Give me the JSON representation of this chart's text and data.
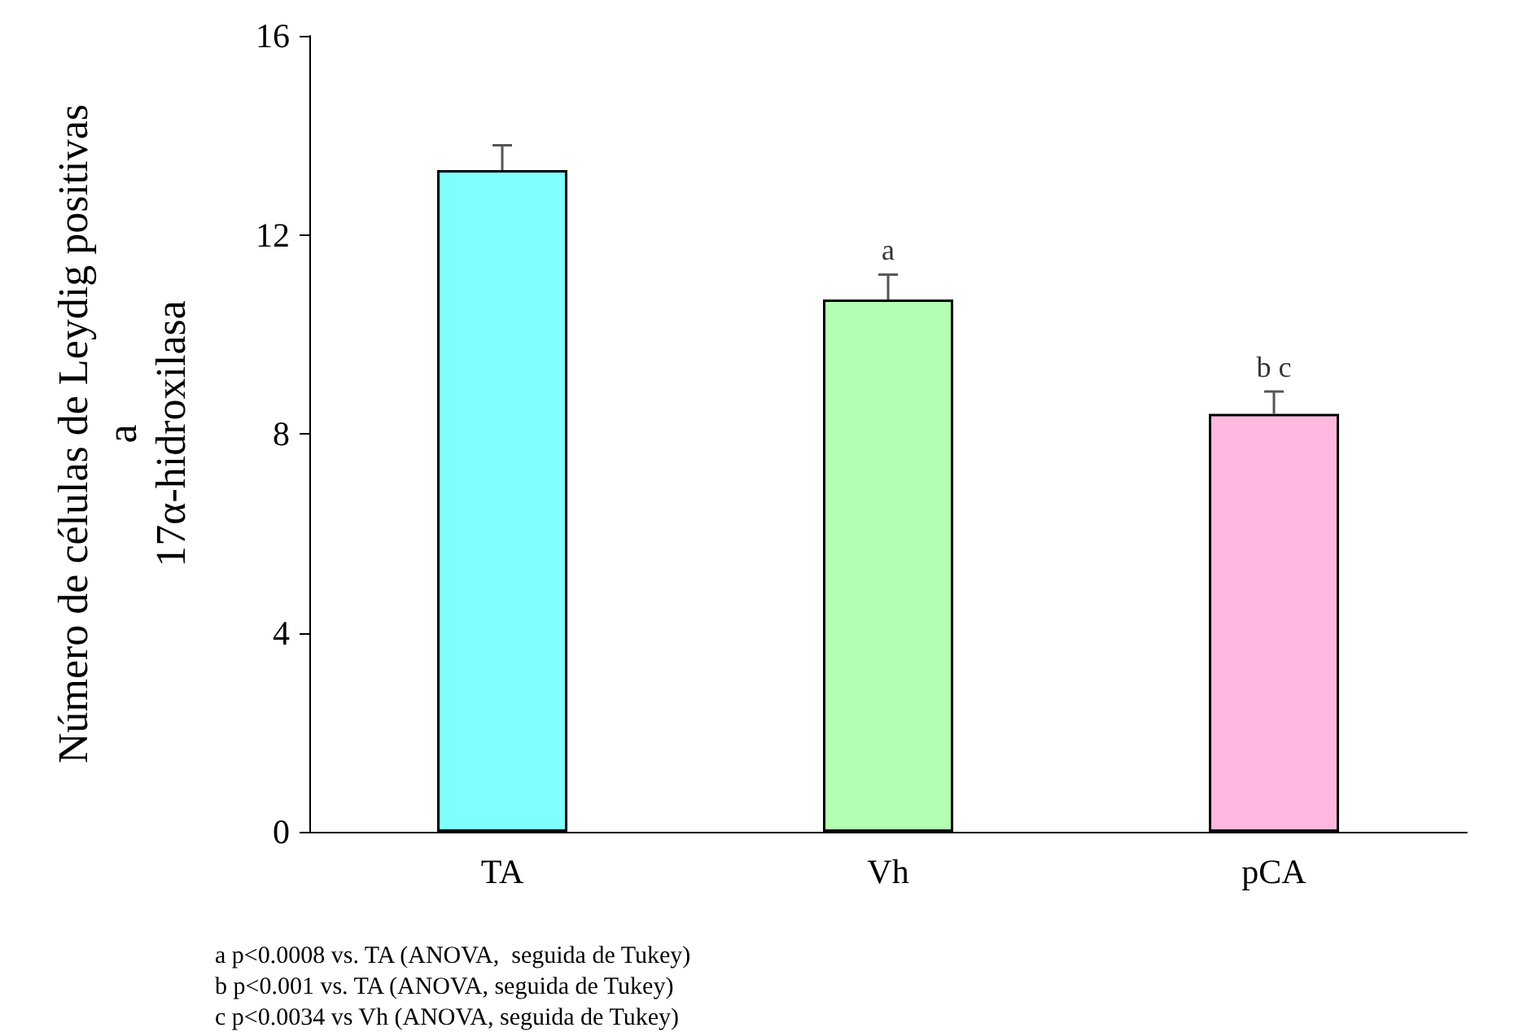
{
  "chart_data": {
    "type": "bar",
    "ylabel": "Número de células de Leydig positivas\na\n17α-hidroxilasa",
    "categories": [
      "TA",
      "Vh",
      "pCA"
    ],
    "values": [
      13.3,
      10.7,
      8.4
    ],
    "colors": [
      "#80ffff",
      "#b3ffb3",
      "#ffb8e0"
    ],
    "errors": [
      [
        13.3,
        13.8
      ],
      [
        10.7,
        11.2
      ],
      [
        8.4,
        8.85
      ]
    ],
    "ylim": [
      0,
      16
    ],
    "yticks": [
      0,
      4,
      8,
      12,
      16
    ],
    "grid": false,
    "annotations": [
      {
        "text": "a",
        "x": "Vh",
        "y": 11.2
      },
      {
        "text": "b c",
        "x": "pCA",
        "y": 8.85
      },
      "a p<0.0008 vs. TA (ANOVA,  seguida de Tukey)\nb p<0.001 vs. TA (ANOVA, seguida de Tukey)\nc p<0.0034 vs Vh (ANOVA, seguida de Tukey)"
    ]
  }
}
